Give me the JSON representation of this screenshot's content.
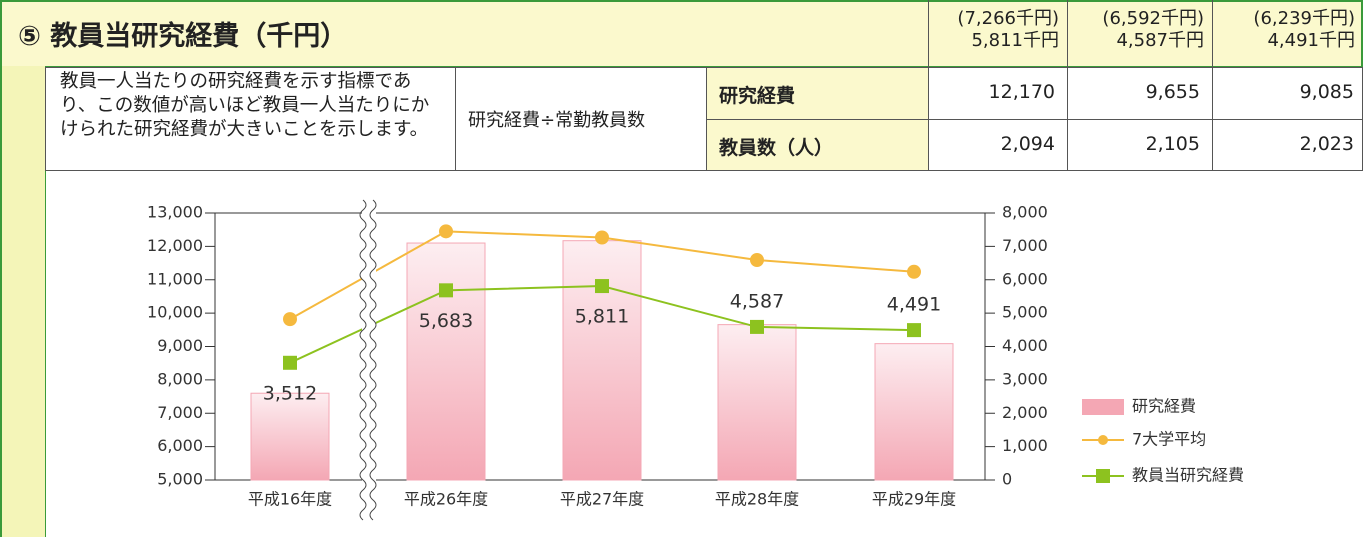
{
  "header": {
    "title": "⑤ 教員当研究経費（千円）",
    "columns": [
      {
        "note": "(7,266千円)",
        "value": "5,811千円"
      },
      {
        "note": "(6,592千円)",
        "value": "4,587千円"
      },
      {
        "note": "(6,239千円)",
        "value": "4,491千円"
      }
    ]
  },
  "table": {
    "description": "教員一人当たりの研究経費を示す指標であり、この数値が高いほど教員一人当たりにかけられた研究経費が大きいことを示します。",
    "formula": "研究経費÷常勤教員数",
    "rows": [
      {
        "label": "研究経費",
        "values": [
          "12,170",
          "9,655",
          "9,085"
        ]
      },
      {
        "label": "教員数（人）",
        "values": [
          "2,094",
          "2,105",
          "2,023"
        ]
      }
    ]
  },
  "chart_data": {
    "type": "bar",
    "categories": [
      "平成16年度",
      "平成26年度",
      "平成27年度",
      "平成28年度",
      "平成29年度"
    ],
    "series": [
      {
        "name": "研究経費",
        "type": "bar",
        "color": "#f4a7b4",
        "values": [
          7600,
          12100,
          12170,
          9655,
          9085
        ]
      },
      {
        "name": "7大学平均",
        "type": "line",
        "marker": "circle",
        "color": "#f5b93e",
        "axis": "y2",
        "values": [
          4820,
          7450,
          7266,
          6592,
          6239
        ]
      },
      {
        "name": "教員当研究経費",
        "type": "line",
        "marker": "square",
        "color": "#8dc21f",
        "axis": "y2",
        "values": [
          3512,
          5683,
          5811,
          4587,
          4491
        ],
        "value_labels": [
          "3,512",
          "5,683",
          "5,811",
          "4,587",
          "4,491"
        ]
      }
    ],
    "ylim": [
      5000,
      13000
    ],
    "yticks": [
      {
        "value": 5000,
        "label": "5,000"
      },
      {
        "value": 6000,
        "label": "6,000"
      },
      {
        "value": 7000,
        "label": "7,000"
      },
      {
        "value": 8000,
        "label": "8,000"
      },
      {
        "value": 9000,
        "label": "9,000"
      },
      {
        "value": 10000,
        "label": "10,000"
      },
      {
        "value": 11000,
        "label": "11,000"
      },
      {
        "value": 12000,
        "label": "12,000"
      },
      {
        "value": 13000,
        "label": "13,000"
      }
    ],
    "y2lim": [
      0,
      8000
    ],
    "y2ticks": [
      0,
      {
        "value": 1000,
        "label": "1,000"
      },
      {
        "value": 2000,
        "label": "2,000"
      },
      {
        "value": 3000,
        "label": "3,000"
      },
      {
        "value": 4000,
        "label": "4,000"
      },
      {
        "value": 5000,
        "label": "5,000"
      },
      {
        "value": 6000,
        "label": "6,000"
      },
      {
        "value": 7000,
        "label": "7,000"
      },
      {
        "value": 8000,
        "label": "8,000"
      }
    ]
  }
}
